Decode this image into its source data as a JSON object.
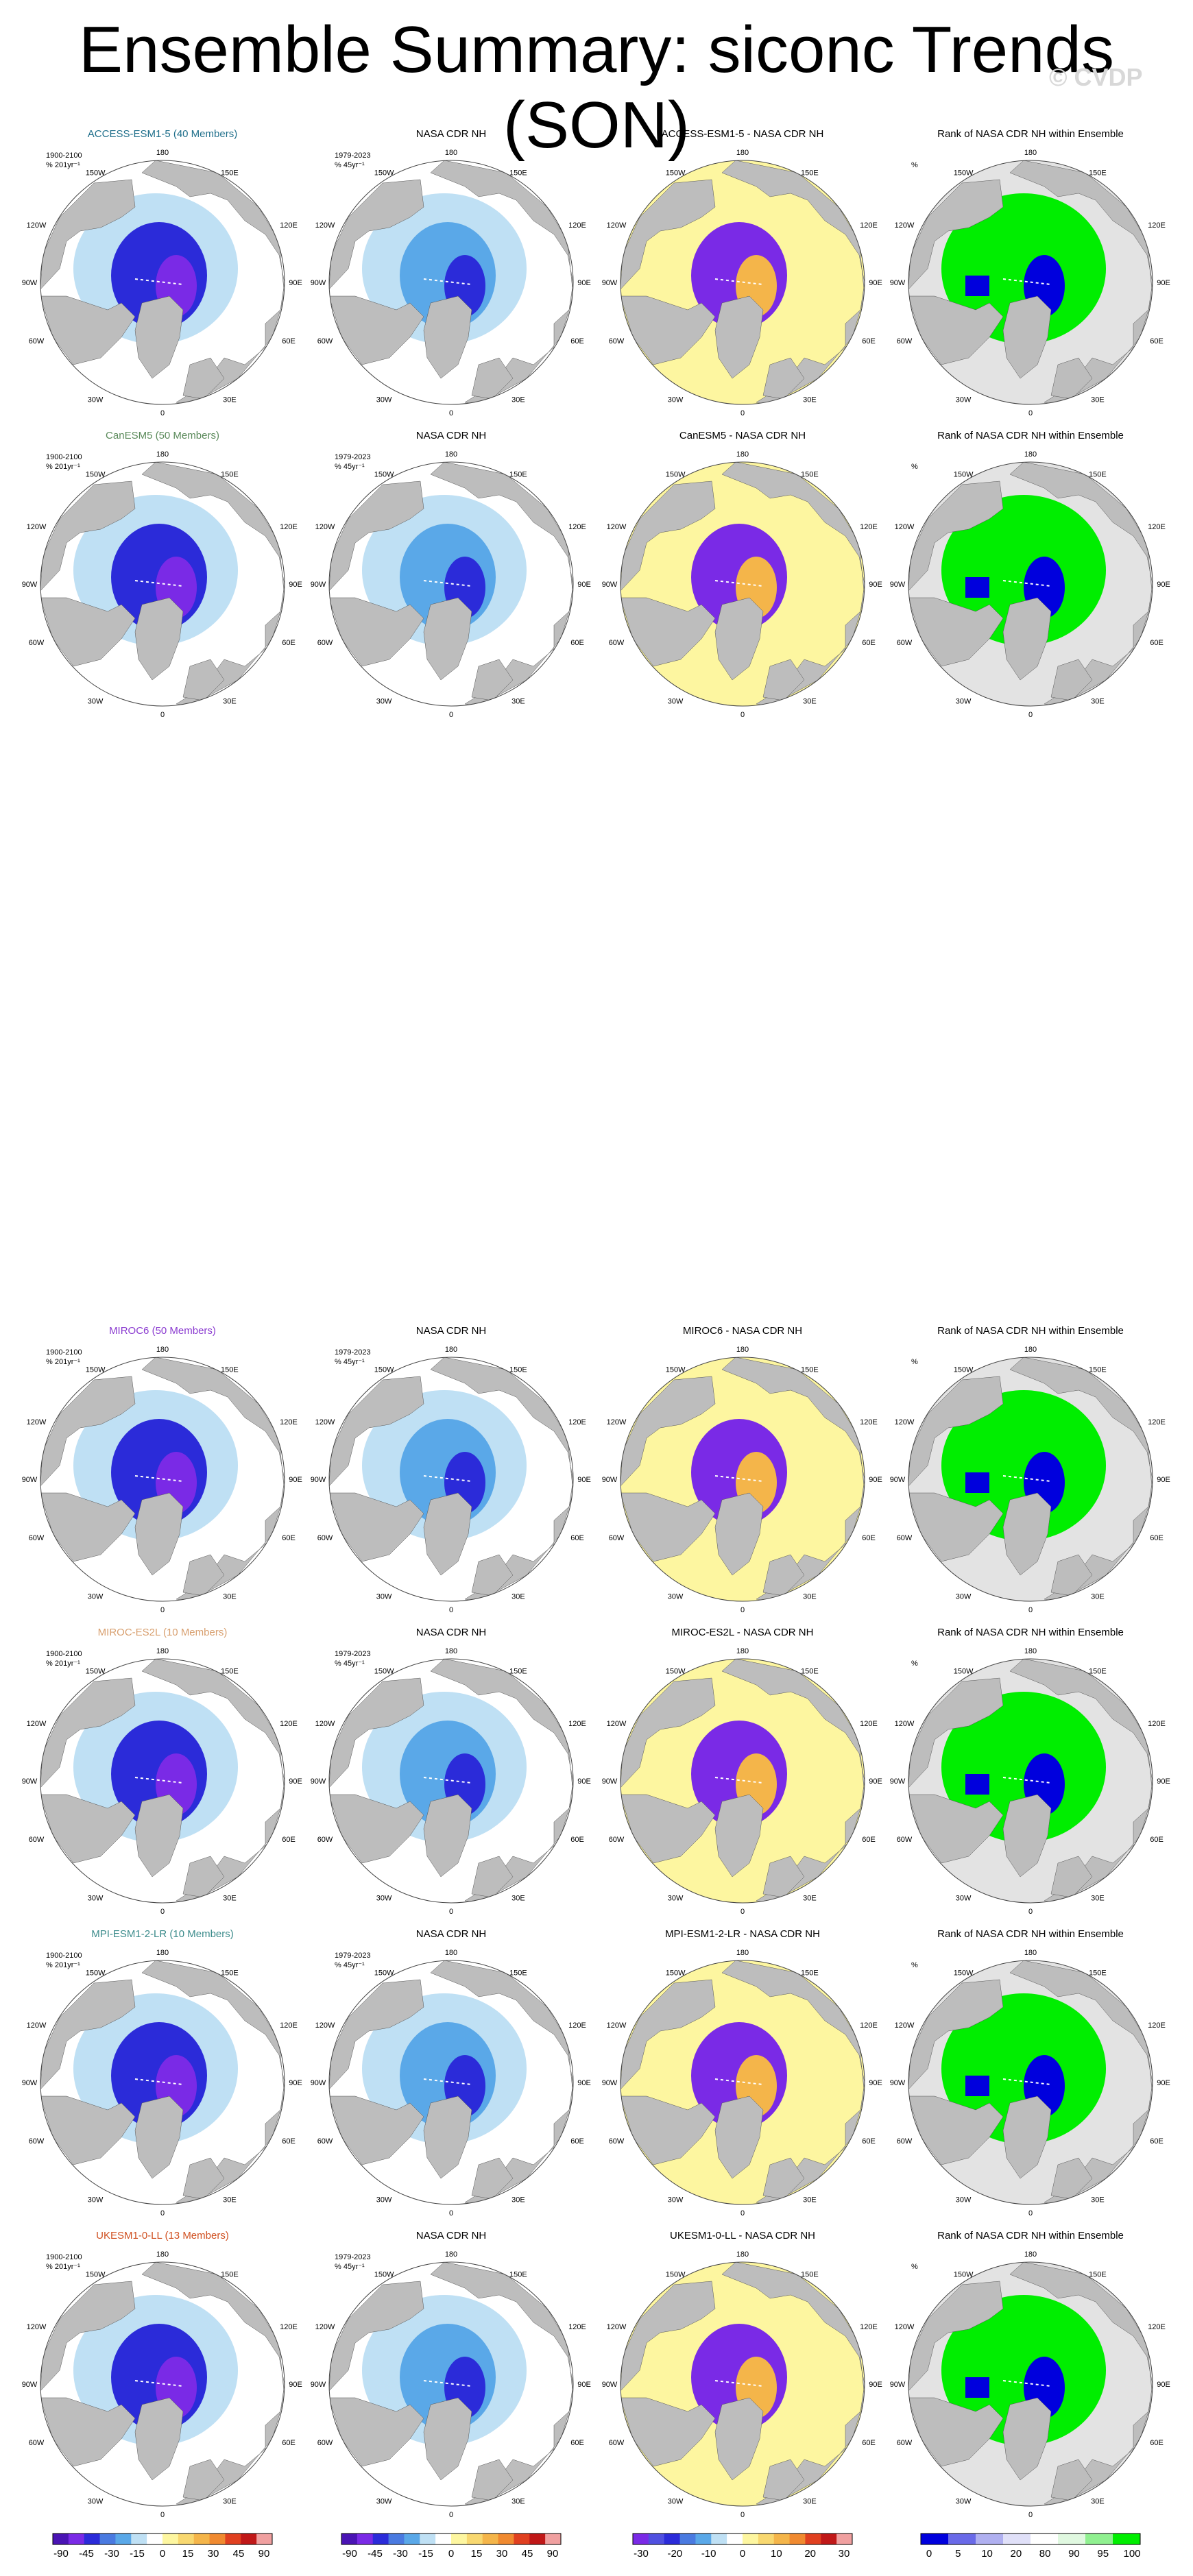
{
  "title": "Ensemble Summary: siconc Trends (SON)",
  "watermark": "© CVDP",
  "lon_labels": {
    "top": "180",
    "bottom": "0",
    "left": "90W",
    "right": "90E",
    "upper_left": "150W",
    "upper_right": "150E",
    "mid_upper_left": "120W",
    "mid_upper_right": "120E",
    "mid_lower_left": "60W",
    "mid_lower_right": "60E",
    "lower_left": "30W",
    "lower_right": "30E"
  },
  "colors": {
    "land": "#bdbdbd",
    "ocean": "#ffffff",
    "rank_bg": "#e3e3e3",
    "strong_neg": "#7a2ae6",
    "neg": "#2b2bd9",
    "mid_neg": "#5aa8e8",
    "light_neg": "#bfe0f4",
    "pos_light": "#fdf6a0",
    "pos": "#f4b54a",
    "pos_strong": "#e04020",
    "rank_green": "#00ee00",
    "rank_blue": "#0000dd"
  },
  "rows": [
    {
      "model": "ACCESS-ESM1-5 (40 Members)",
      "model_color": "#1f6f8b",
      "period_model": "1900-2100",
      "units_model": "% 201yr⁻¹",
      "obs": "NASA CDR NH",
      "period_obs": "1979-2023",
      "units_obs": "% 45yr⁻¹",
      "diff": "ACCESS-ESM1-5 - NASA CDR NH",
      "rank": "Rank of NASA CDR NH within Ensemble",
      "rank_units": "%"
    },
    {
      "model": "CanESM5 (50 Members)",
      "model_color": "#5a8a5a",
      "period_model": "1900-2100",
      "units_model": "% 201yr⁻¹",
      "obs": "NASA CDR NH",
      "period_obs": "1979-2023",
      "units_obs": "% 45yr⁻¹",
      "diff": "CanESM5 - NASA CDR NH",
      "rank": "Rank of NASA CDR NH within Ensemble",
      "rank_units": "%"
    },
    {
      "model": "MIROC6 (50 Members)",
      "model_color": "#8a3ad0",
      "period_model": "1900-2100",
      "units_model": "% 201yr⁻¹",
      "obs": "NASA CDR NH",
      "period_obs": "1979-2023",
      "units_obs": "% 45yr⁻¹",
      "diff": "MIROC6 - NASA CDR NH",
      "rank": "Rank of NASA CDR NH within Ensemble",
      "rank_units": "%"
    },
    {
      "model": "MIROC-ES2L (10 Members)",
      "model_color": "#d8a070",
      "period_model": "1900-2100",
      "units_model": "% 201yr⁻¹",
      "obs": "NASA CDR NH",
      "period_obs": "1979-2023",
      "units_obs": "% 45yr⁻¹",
      "diff": "MIROC-ES2L - NASA CDR NH",
      "rank": "Rank of NASA CDR NH within Ensemble",
      "rank_units": "%"
    },
    {
      "model": "MPI-ESM1-2-LR (10 Members)",
      "model_color": "#3a8a8a",
      "period_model": "1900-2100",
      "units_model": "% 201yr⁻¹",
      "obs": "NASA CDR NH",
      "period_obs": "1979-2023",
      "units_obs": "% 45yr⁻¹",
      "diff": "MPI-ESM1-2-LR - NASA CDR NH",
      "rank": "Rank of NASA CDR NH within Ensemble",
      "rank_units": "%"
    },
    {
      "model": "UKESM1-0-LL (13 Members)",
      "model_color": "#d05020",
      "period_model": "1900-2100",
      "units_model": "% 201yr⁻¹",
      "obs": "NASA CDR NH",
      "period_obs": "1979-2023",
      "units_obs": "% 45yr⁻¹",
      "diff": "UKESM1-0-LL - NASA CDR NH",
      "rank": "Rank of NASA CDR NH within Ensemble",
      "rank_units": "%"
    }
  ],
  "colorbars": [
    {
      "labels": [
        "-90",
        "-45",
        "-30",
        "-15",
        "0",
        "15",
        "30",
        "45",
        "90"
      ],
      "colors": [
        "#4a14b4",
        "#7a2ae6",
        "#2b2bd9",
        "#4a7ae0",
        "#5aa8e8",
        "#bfe0f4",
        "#ffffff",
        "#fdf6a0",
        "#f8d870",
        "#f4b54a",
        "#f08a30",
        "#e04020",
        "#c01818",
        "#f0a0a0"
      ]
    },
    {
      "labels": [
        "-90",
        "-45",
        "-30",
        "-15",
        "0",
        "15",
        "30",
        "45",
        "90"
      ],
      "colors": [
        "#4a14b4",
        "#7a2ae6",
        "#2b2bd9",
        "#4a7ae0",
        "#5aa8e8",
        "#bfe0f4",
        "#ffffff",
        "#fdf6a0",
        "#f8d870",
        "#f4b54a",
        "#f08a30",
        "#e04020",
        "#c01818",
        "#f0a0a0"
      ]
    },
    {
      "labels": [
        "-30",
        "-20",
        "-10",
        "0",
        "10",
        "20",
        "30"
      ],
      "colors": [
        "#7a2ae6",
        "#5050e0",
        "#2b2bd9",
        "#4a7ae0",
        "#5aa8e8",
        "#bfe0f4",
        "#ffffff",
        "#fdf6a0",
        "#f8d870",
        "#f4b54a",
        "#f08a30",
        "#e04020",
        "#c01818",
        "#f0a0a0"
      ]
    },
    {
      "labels": [
        "0",
        "5",
        "10",
        "20",
        "80",
        "90",
        "95",
        "100"
      ],
      "colors": [
        "#0000dd",
        "#6a6ae8",
        "#b0b0f0",
        "#e0e0f8",
        "#ffffff",
        "#e0f8e0",
        "#90f090",
        "#00ee00"
      ]
    }
  ]
}
